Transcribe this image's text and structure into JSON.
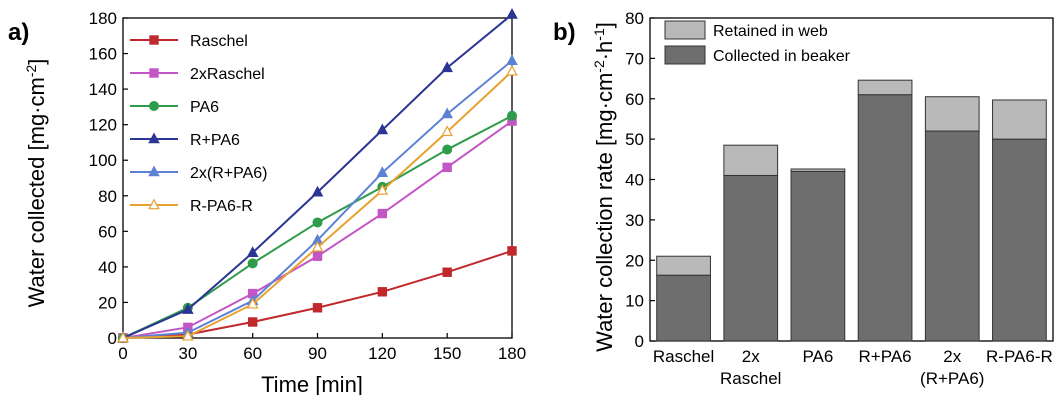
{
  "chart_data": [
    {
      "panel_label": "a)",
      "type": "line",
      "xlabel": "Time [min]",
      "ylabel": "Water collected [mg·cm⁻²]",
      "xlim": [
        0,
        180
      ],
      "ylim": [
        0,
        180
      ],
      "xticks": [
        0,
        30,
        60,
        90,
        120,
        150,
        180
      ],
      "yticks": [
        0,
        20,
        40,
        60,
        80,
        100,
        120,
        140,
        160,
        180
      ],
      "legend_position": "top-left",
      "x": [
        0,
        30,
        60,
        90,
        120,
        150,
        180
      ],
      "series": [
        {
          "name": "Raschel",
          "color": "#c0282c",
          "marker": "square",
          "values": [
            0,
            2,
            9,
            17,
            26,
            37,
            49
          ]
        },
        {
          "name": "2xRaschel",
          "color": "#c455c4",
          "marker": "square",
          "values": [
            0,
            6,
            25,
            46,
            70,
            96,
            122
          ]
        },
        {
          "name": "PA6",
          "color": "#2e9c4a",
          "marker": "circle",
          "values": [
            0,
            17,
            42,
            65,
            85,
            106,
            125
          ]
        },
        {
          "name": "R+PA6",
          "color": "#2b3593",
          "marker": "triangle",
          "values": [
            0,
            16,
            48,
            82,
            117,
            152,
            182
          ]
        },
        {
          "name": "2x(R+PA6)",
          "color": "#5d82d4",
          "marker": "triangle",
          "values": [
            0,
            3,
            21,
            55,
            93,
            126,
            156
          ]
        },
        {
          "name": "R-PA6-R",
          "color": "#e8a030",
          "marker": "triangle-open",
          "values": [
            0,
            1,
            19,
            51,
            83,
            116,
            150
          ]
        }
      ]
    },
    {
      "panel_label": "b)",
      "type": "bar",
      "stacked": true,
      "ylabel": "Water collection rate [mg·cm⁻²·h⁻¹]",
      "ylim": [
        0,
        80
      ],
      "yticks": [
        0,
        10,
        20,
        30,
        40,
        50,
        60,
        70,
        80
      ],
      "categories": [
        [
          "Raschel"
        ],
        [
          "2x",
          "Raschel"
        ],
        [
          "PA6"
        ],
        [
          "R+PA6"
        ],
        [
          "2x",
          "(R+PA6)"
        ],
        [
          "R-PA6-R"
        ]
      ],
      "legend_position": "top-left",
      "series": [
        {
          "name": "Collected in beaker",
          "color": "#6e6e6e",
          "values": [
            16.3,
            41,
            42,
            61,
            52,
            50
          ]
        },
        {
          "name": "Retained in web",
          "color": "#b9b9b9",
          "values": [
            4.7,
            7.5,
            0.6,
            3.6,
            8.5,
            9.7
          ]
        }
      ]
    }
  ]
}
